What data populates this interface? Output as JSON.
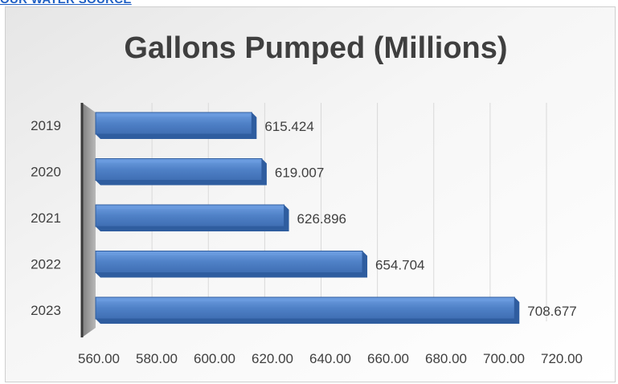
{
  "page": {
    "top_link": "OUR WATER SOURCE"
  },
  "colors": {
    "bar_front": "#4f81c7",
    "bar_top": "#6b9be0",
    "bar_dark": "#2f5d9f",
    "text": "#404040",
    "title": "#3f3f3f",
    "gridline": "#d9d9d9"
  },
  "chart_data": {
    "type": "bar",
    "orientation": "horizontal",
    "style": "3d",
    "title": "Gallons Pumped (Millions)",
    "xlabel": "",
    "ylabel": "",
    "categories": [
      "2019",
      "2020",
      "2021",
      "2022",
      "2023"
    ],
    "values": [
      615.424,
      619.007,
      626.896,
      654.704,
      708.677
    ],
    "value_labels": [
      "615.424",
      "619.007",
      "626.896",
      "654.704",
      "708.677"
    ],
    "xlim": [
      560,
      720
    ],
    "x_ticks": [
      "560.00",
      "580.00",
      "600.00",
      "620.00",
      "640.00",
      "660.00",
      "680.00",
      "700.00",
      "720.00"
    ],
    "grid": true,
    "legend": "none"
  }
}
